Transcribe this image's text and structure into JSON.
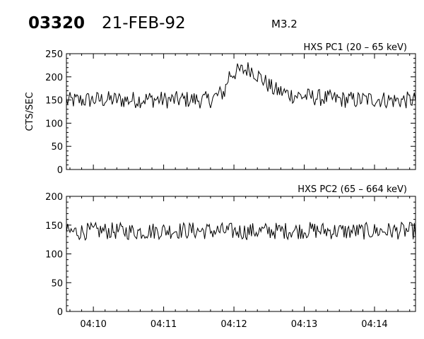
{
  "header": {
    "event_id": "03320",
    "date": "21-FEB-92",
    "goes_class": "M3.2"
  },
  "chart_data": [
    {
      "type": "line",
      "title": "HXS PC1 (20 – 65 keV)",
      "xlabel": "",
      "ylabel": "CTS/SEC",
      "xlim": [
        "04:09:37",
        "04:14:35"
      ],
      "ylim": [
        0,
        250
      ],
      "ytick_labels": [
        "0",
        "50",
        "100",
        "150",
        "200",
        "250"
      ],
      "xtick_labels": [],
      "series": [
        {
          "x": [
            "04:09:37",
            "04:09:54",
            "04:10:12",
            "04:10:29",
            "04:10:47",
            "04:11:04",
            "04:11:22",
            "04:11:39",
            "04:11:52",
            "04:11:56",
            "04:12:04",
            "04:12:14",
            "04:12:24",
            "04:12:34",
            "04:12:51",
            "04:13:09",
            "04:13:26",
            "04:13:44",
            "04:14:01",
            "04:14:19",
            "04:14:35"
          ],
          "values": [
            148,
            150,
            151,
            150,
            152,
            150,
            151,
            150,
            168,
            205,
            212,
            218,
            195,
            172,
            160,
            156,
            152,
            150,
            152,
            149,
            150
          ]
        }
      ]
    },
    {
      "type": "line",
      "title": "HXS PC2 (65 – 664 keV)",
      "xlabel": "",
      "ylabel": "",
      "xlim": [
        "04:09:37",
        "04:14:35"
      ],
      "ylim": [
        0,
        200
      ],
      "ytick_labels": [
        "0",
        "50",
        "100",
        "150",
        "200"
      ],
      "xtick_labels": [
        "04:10",
        "04:11",
        "04:12",
        "04:13",
        "04:14"
      ],
      "series": [
        {
          "x": [
            "04:09:37",
            "04:10:07",
            "04:10:37",
            "04:11:07",
            "04:11:37",
            "04:12:07",
            "04:12:37",
            "04:13:07",
            "04:13:37",
            "04:14:07",
            "04:14:35"
          ],
          "values": [
            138,
            140,
            139,
            141,
            140,
            139,
            140,
            141,
            139,
            140,
            140
          ]
        }
      ]
    }
  ]
}
